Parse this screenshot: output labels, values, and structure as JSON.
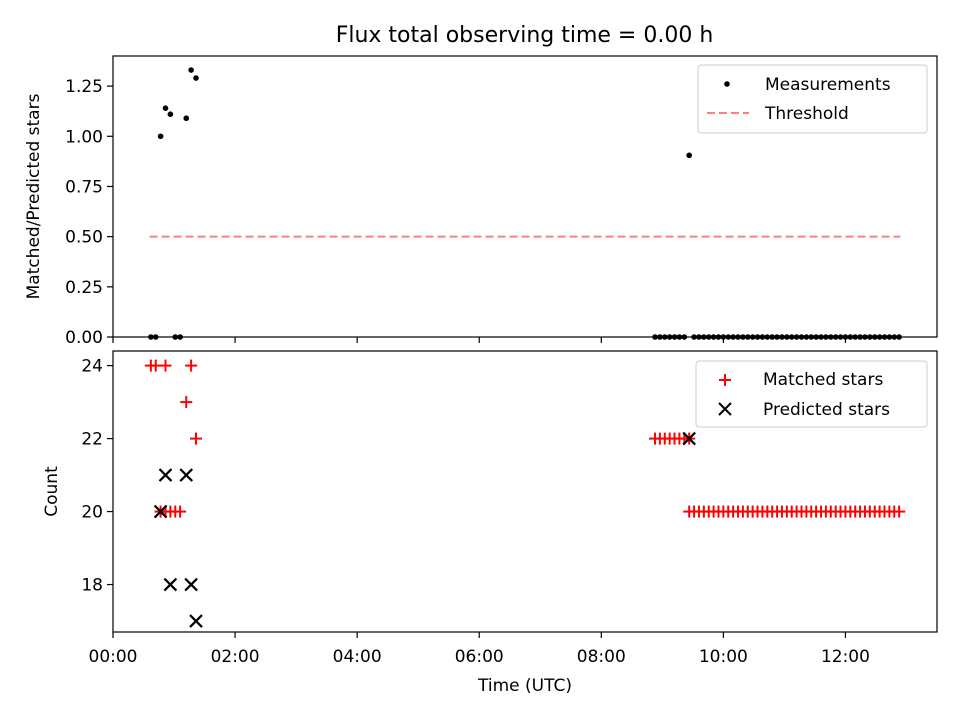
{
  "title": "Flux total observing time = 0.00 h",
  "chart_data": [
    {
      "type": "scatter",
      "panel": "top",
      "ylabel": "Matched/Predicted stars",
      "ylim": [
        0,
        1.4
      ],
      "xlim": [
        0,
        13.5
      ],
      "yticks": [
        0,
        0.25,
        0.5,
        0.75,
        1.0,
        1.25
      ],
      "ytick_labels": [
        "0.00",
        "0.25",
        "0.50",
        "0.75",
        "1.00",
        "1.25"
      ],
      "legend_position": "upper right",
      "series": [
        {
          "name": "Measurements",
          "marker": "dot",
          "color": "#000000",
          "points": [
            [
              0.62,
              0
            ],
            [
              0.7,
              0
            ],
            [
              0.78,
              1.0
            ],
            [
              0.86,
              1.14
            ],
            [
              0.94,
              1.11
            ],
            [
              1.02,
              0
            ],
            [
              1.1,
              0
            ],
            [
              1.2,
              1.09
            ],
            [
              1.28,
              1.33
            ],
            [
              1.36,
              1.29
            ],
            [
              8.88,
              0
            ],
            [
              8.96,
              0
            ],
            [
              9.04,
              0
            ],
            [
              9.12,
              0
            ],
            [
              9.2,
              0
            ],
            [
              9.28,
              0
            ],
            [
              9.36,
              0
            ],
            [
              9.44,
              0.905
            ],
            [
              9.52,
              0
            ],
            [
              9.6,
              0
            ],
            [
              9.68,
              0
            ],
            [
              9.76,
              0
            ],
            [
              9.84,
              0
            ],
            [
              9.92,
              0
            ],
            [
              10.0,
              0
            ],
            [
              10.08,
              0
            ],
            [
              10.16,
              0
            ],
            [
              10.24,
              0
            ],
            [
              10.32,
              0
            ],
            [
              10.4,
              0
            ],
            [
              10.48,
              0
            ],
            [
              10.56,
              0
            ],
            [
              10.64,
              0
            ],
            [
              10.72,
              0
            ],
            [
              10.8,
              0
            ],
            [
              10.88,
              0
            ],
            [
              10.96,
              0
            ],
            [
              11.04,
              0
            ],
            [
              11.12,
              0
            ],
            [
              11.2,
              0
            ],
            [
              11.28,
              0
            ],
            [
              11.36,
              0
            ],
            [
              11.44,
              0
            ],
            [
              11.52,
              0
            ],
            [
              11.6,
              0
            ],
            [
              11.68,
              0
            ],
            [
              11.76,
              0
            ],
            [
              11.84,
              0
            ],
            [
              11.92,
              0
            ],
            [
              12.0,
              0
            ],
            [
              12.08,
              0
            ],
            [
              12.16,
              0
            ],
            [
              12.24,
              0
            ],
            [
              12.32,
              0
            ],
            [
              12.4,
              0
            ],
            [
              12.48,
              0
            ],
            [
              12.56,
              0
            ],
            [
              12.64,
              0
            ],
            [
              12.72,
              0
            ],
            [
              12.8,
              0
            ],
            [
              12.88,
              0
            ]
          ]
        },
        {
          "name": "Threshold",
          "marker": "dashed-line",
          "color": "#ff7f7f",
          "points": [
            [
              0.6,
              0.5
            ],
            [
              12.9,
              0.5
            ]
          ]
        }
      ]
    },
    {
      "type": "scatter",
      "panel": "bottom",
      "xlabel": "Time (UTC)",
      "ylabel": "Count",
      "ylim": [
        16.7,
        24.4
      ],
      "xlim": [
        0,
        13.5
      ],
      "yticks": [
        18,
        20,
        22,
        24
      ],
      "ytick_labels": [
        "18",
        "20",
        "22",
        "24"
      ],
      "xticks": [
        0,
        2,
        4,
        6,
        8,
        10,
        12
      ],
      "xtick_labels": [
        "00:00",
        "02:00",
        "04:00",
        "06:00",
        "08:00",
        "10:00",
        "12:00"
      ],
      "legend_position": "upper right",
      "series": [
        {
          "name": "Matched stars",
          "marker": "plus",
          "color": "#ff0000",
          "points": [
            [
              0.62,
              24
            ],
            [
              0.7,
              24
            ],
            [
              0.86,
              24
            ],
            [
              1.28,
              24
            ],
            [
              1.2,
              23
            ],
            [
              1.36,
              22
            ],
            [
              0.78,
              20
            ],
            [
              0.86,
              20
            ],
            [
              0.94,
              20
            ],
            [
              1.02,
              20
            ],
            [
              1.1,
              20
            ],
            [
              8.88,
              22
            ],
            [
              8.96,
              22
            ],
            [
              9.04,
              22
            ],
            [
              9.12,
              22
            ],
            [
              9.2,
              22
            ],
            [
              9.28,
              22
            ],
            [
              9.36,
              22
            ],
            [
              9.44,
              22
            ],
            [
              9.44,
              20
            ],
            [
              9.52,
              20
            ],
            [
              9.6,
              20
            ],
            [
              9.68,
              20
            ],
            [
              9.76,
              20
            ],
            [
              9.84,
              20
            ],
            [
              9.92,
              20
            ],
            [
              10.0,
              20
            ],
            [
              10.08,
              20
            ],
            [
              10.16,
              20
            ],
            [
              10.24,
              20
            ],
            [
              10.32,
              20
            ],
            [
              10.4,
              20
            ],
            [
              10.48,
              20
            ],
            [
              10.56,
              20
            ],
            [
              10.64,
              20
            ],
            [
              10.72,
              20
            ],
            [
              10.8,
              20
            ],
            [
              10.88,
              20
            ],
            [
              10.96,
              20
            ],
            [
              11.04,
              20
            ],
            [
              11.12,
              20
            ],
            [
              11.2,
              20
            ],
            [
              11.28,
              20
            ],
            [
              11.36,
              20
            ],
            [
              11.44,
              20
            ],
            [
              11.52,
              20
            ],
            [
              11.6,
              20
            ],
            [
              11.68,
              20
            ],
            [
              11.76,
              20
            ],
            [
              11.84,
              20
            ],
            [
              11.92,
              20
            ],
            [
              12.0,
              20
            ],
            [
              12.08,
              20
            ],
            [
              12.16,
              20
            ],
            [
              12.24,
              20
            ],
            [
              12.32,
              20
            ],
            [
              12.4,
              20
            ],
            [
              12.48,
              20
            ],
            [
              12.56,
              20
            ],
            [
              12.64,
              20
            ],
            [
              12.72,
              20
            ],
            [
              12.8,
              20
            ],
            [
              12.88,
              20
            ]
          ]
        },
        {
          "name": "Predicted stars",
          "marker": "x",
          "color": "#000000",
          "points": [
            [
              0.78,
              20
            ],
            [
              0.86,
              21
            ],
            [
              0.94,
              18
            ],
            [
              1.2,
              21
            ],
            [
              1.28,
              18
            ],
            [
              1.36,
              17
            ],
            [
              9.44,
              22
            ]
          ]
        }
      ]
    }
  ]
}
